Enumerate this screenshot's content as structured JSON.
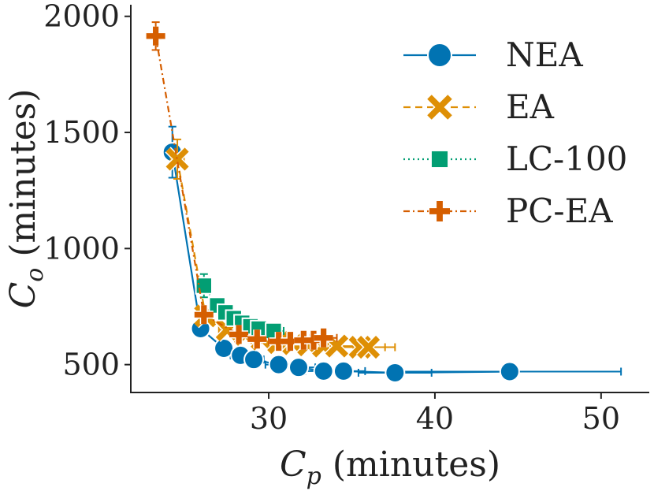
{
  "chart_data": {
    "type": "line",
    "title": "",
    "xlabel": {
      "symbol": "C",
      "subscript": "p",
      "rest": " (minutes)"
    },
    "ylabel": {
      "symbol": "C",
      "subscript": "o",
      "rest": " (minutes)"
    },
    "xlim": [
      21.7,
      52.9
    ],
    "ylim": [
      380,
      2050
    ],
    "xticks": [
      30,
      40,
      50
    ],
    "yticks": [
      500,
      1000,
      1500,
      2000
    ],
    "grid": false,
    "legend_position": "top-right",
    "series": [
      {
        "name": "NEA",
        "color": "#0173b2",
        "marker": "circle",
        "linestyle": "solid",
        "x": [
          24.2,
          25.9,
          27.3,
          28.3,
          29.1,
          30.6,
          31.8,
          33.3,
          34.5,
          37.6,
          44.5
        ],
        "y": [
          1415,
          655,
          570,
          540,
          522,
          500,
          488,
          472,
          472,
          465,
          470
        ],
        "xerr": [
          0.3,
          0.4,
          0.5,
          0.6,
          0.6,
          0.8,
          1.0,
          1.1,
          1.3,
          2.2,
          6.7
        ],
        "yerr": [
          110,
          20,
          15,
          12,
          12,
          10,
          10,
          8,
          8,
          8,
          8
        ]
      },
      {
        "name": "EA",
        "color": "#de8f05",
        "marker": "x",
        "linestyle": "dashed",
        "x": [
          24.5,
          26.2,
          27.5,
          28.6,
          29.6,
          30.6,
          31.5,
          32.4,
          33.3,
          34.1,
          35.5,
          36.0
        ],
        "y": [
          1385,
          710,
          650,
          630,
          610,
          595,
          590,
          585,
          580,
          580,
          575,
          575
        ],
        "xerr": [
          0.4,
          0.4,
          0.5,
          0.5,
          0.6,
          0.7,
          0.8,
          0.8,
          0.9,
          1.0,
          1.5,
          1.6
        ],
        "yerr": [
          85,
          25,
          15,
          12,
          12,
          10,
          10,
          10,
          10,
          10,
          10,
          10
        ]
      },
      {
        "name": "LC-100",
        "color": "#029e73",
        "marker": "square",
        "linestyle": "dotted",
        "x": [
          26.1,
          26.9,
          27.4,
          27.9,
          28.4,
          28.9,
          29.4,
          30.3
        ],
        "y": [
          840,
          755,
          725,
          700,
          680,
          665,
          655,
          645
        ],
        "xerr": [
          0.4,
          0.4,
          0.4,
          0.4,
          0.5,
          0.5,
          0.5,
          0.6
        ],
        "yerr": [
          50,
          20,
          15,
          12,
          12,
          10,
          10,
          10
        ]
      },
      {
        "name": "PC-EA",
        "color": "#d55e00",
        "marker": "plus",
        "linestyle": "dashdot",
        "x": [
          23.2,
          26.1,
          28.2,
          29.3,
          30.6,
          31.3,
          32.1,
          32.7,
          33.3
        ],
        "y": [
          1915,
          715,
          630,
          610,
          600,
          600,
          605,
          605,
          615
        ],
        "xerr": [
          0.3,
          0.4,
          0.5,
          0.5,
          0.6,
          0.6,
          0.7,
          0.7,
          0.8
        ],
        "yerr": [
          60,
          25,
          15,
          12,
          12,
          10,
          10,
          10,
          10
        ]
      }
    ]
  }
}
